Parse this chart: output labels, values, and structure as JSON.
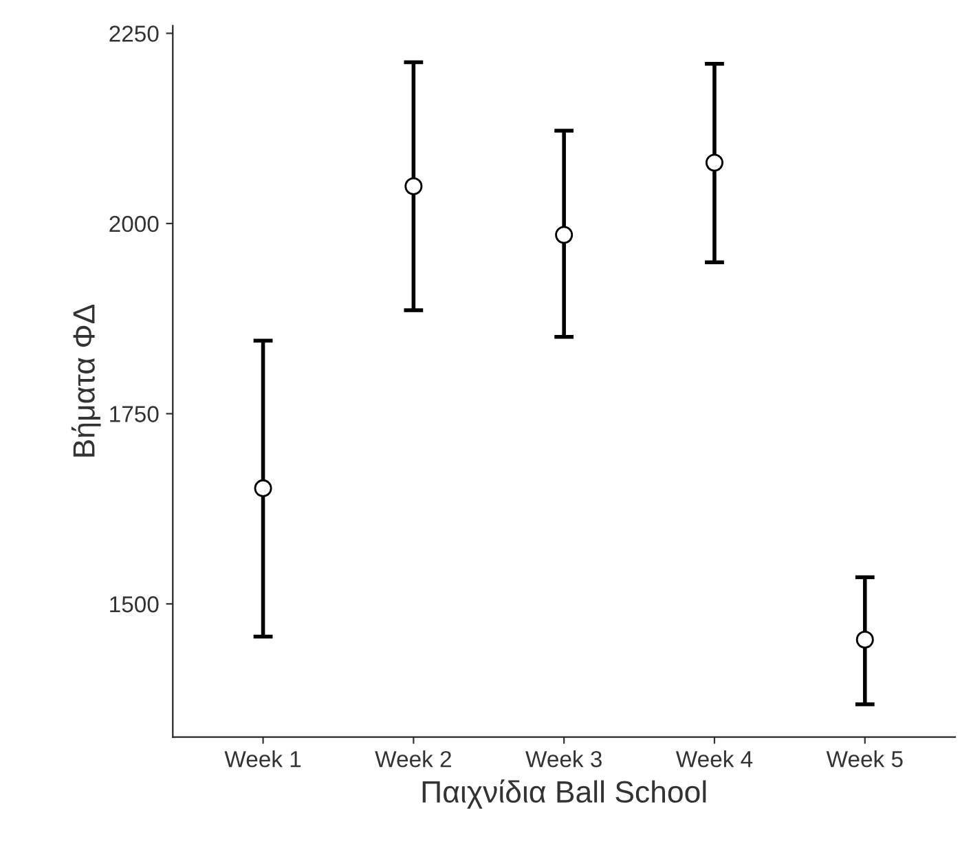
{
  "chart_data": {
    "type": "scatter",
    "xlabel": "Παιχνίδια Ball School",
    "ylabel": "Βήματα ΦΔ",
    "categories": [
      "Week 1",
      "Week 2",
      "Week 3",
      "Week 4",
      "Week 5"
    ],
    "series": [
      {
        "color": "#ffffff",
        "values": [
          1652,
          2049,
          1985,
          2080,
          1453
        ],
        "errors": [
          [
            1457,
            1846
          ],
          [
            1886,
            2212
          ],
          [
            1851,
            2122
          ],
          [
            1949,
            2210
          ],
          [
            1368,
            1535
          ]
        ]
      }
    ],
    "ylim": [
      1325,
      2260
    ],
    "yticks": [
      1500,
      1750,
      2000,
      2250
    ],
    "marker": "circle",
    "grid": false,
    "legend": false
  }
}
